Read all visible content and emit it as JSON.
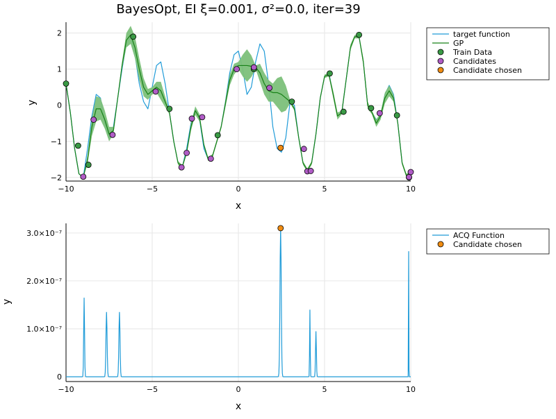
{
  "chart_data": [
    {
      "type": "line",
      "title": "BayesOpt, EI ξ=0.001, σ²=0.0, iter=39",
      "xlabel": "x",
      "ylabel": "y",
      "xlim": [
        -10,
        10
      ],
      "ylim": [
        -2.1,
        2.3
      ],
      "xticks": [
        -10,
        -5,
        0,
        5,
        10
      ],
      "xtick_labels": [
        "−10",
        "−5",
        "0",
        "5",
        "10"
      ],
      "yticks": [
        -2,
        -1,
        0,
        1,
        2
      ],
      "ytick_labels": [
        "−2",
        "−1",
        "0",
        "1",
        "2"
      ],
      "grid": true,
      "legend_position": "outside-top-right",
      "series": [
        {
          "name": "target function",
          "kind": "line",
          "color": "#1f9bd8",
          "x": [
            -10,
            -9.75,
            -9.5,
            -9.25,
            -9,
            -8.75,
            -8.5,
            -8.25,
            -8,
            -7.75,
            -7.5,
            -7.25,
            -7,
            -6.75,
            -6.5,
            -6.25,
            -6,
            -5.75,
            -5.5,
            -5.25,
            -5,
            -4.75,
            -4.5,
            -4.25,
            -4,
            -3.75,
            -3.5,
            -3.25,
            -3,
            -2.75,
            -2.5,
            -2.25,
            -2,
            -1.75,
            -1.5,
            -1.25,
            -1,
            -0.75,
            -0.5,
            -0.25,
            0,
            0.25,
            0.5,
            0.75,
            1,
            1.25,
            1.5,
            1.75,
            2,
            2.25,
            2.5,
            2.75,
            3,
            3.25,
            3.5,
            3.75,
            4,
            4.25,
            4.5,
            4.75,
            5,
            5.25,
            5.5,
            5.75,
            6,
            6.25,
            6.5,
            6.75,
            7,
            7.25,
            7.5,
            7.75,
            8,
            8.25,
            8.5,
            8.75,
            9,
            9.25,
            9.5,
            9.75,
            10
          ],
          "y": [
            0.6,
            -0.2,
            -1.2,
            -1.9,
            -2.0,
            -1.2,
            -0.3,
            0.3,
            0.2,
            -0.5,
            -0.9,
            -0.6,
            0.2,
            1.0,
            1.7,
            1.9,
            1.4,
            0.6,
            0.1,
            -0.1,
            0.5,
            1.1,
            1.2,
            0.6,
            -0.2,
            -1.0,
            -1.6,
            -1.7,
            -1.2,
            -0.5,
            -0.1,
            -0.4,
            -1.2,
            -1.5,
            -1.4,
            -1.0,
            -0.6,
            0.1,
            0.9,
            1.4,
            1.5,
            1.0,
            0.3,
            0.5,
            1.2,
            1.7,
            1.5,
            0.6,
            -0.6,
            -1.2,
            -1.3,
            -0.9,
            0.1,
            0.0,
            -0.9,
            -1.6,
            -1.8,
            -1.6,
            -0.8,
            0.2,
            0.8,
            0.9,
            0.3,
            -0.3,
            -0.2,
            0.7,
            1.6,
            1.9,
            1.9,
            1.2,
            0.0,
            -0.2,
            -0.4,
            -0.3,
            0.3,
            0.55,
            0.3,
            -0.5,
            -1.6,
            -1.95,
            -1.85
          ]
        },
        {
          "name": "GP",
          "kind": "line_with_band",
          "color": "#178117",
          "band_color": "#7cc07a",
          "x": [
            -10,
            -9.75,
            -9.5,
            -9.25,
            -9,
            -8.75,
            -8.5,
            -8.25,
            -8,
            -7.75,
            -7.5,
            -7.25,
            -7,
            -6.75,
            -6.5,
            -6.25,
            -6,
            -5.75,
            -5.5,
            -5.25,
            -5,
            -4.75,
            -4.5,
            -4.25,
            -4,
            -3.75,
            -3.5,
            -3.25,
            -3,
            -2.75,
            -2.5,
            -2.25,
            -2,
            -1.75,
            -1.5,
            -1.25,
            -1,
            -0.75,
            -0.5,
            -0.25,
            0,
            0.25,
            0.5,
            0.75,
            1,
            1.25,
            1.5,
            1.75,
            2,
            2.25,
            2.5,
            2.75,
            3,
            3.25,
            3.5,
            3.75,
            4,
            4.25,
            4.5,
            4.75,
            5,
            5.25,
            5.5,
            5.75,
            6,
            6.25,
            6.5,
            6.75,
            7,
            7.25,
            7.5,
            7.75,
            8,
            8.25,
            8.5,
            8.75,
            9,
            9.25,
            9.5,
            9.75,
            10
          ],
          "y": [
            0.6,
            -0.2,
            -1.2,
            -1.9,
            -2.0,
            -1.5,
            -0.6,
            -0.1,
            -0.1,
            -0.4,
            -0.8,
            -0.7,
            0.2,
            1.1,
            1.8,
            1.95,
            1.6,
            1.0,
            0.5,
            0.3,
            0.4,
            0.5,
            0.4,
            0.1,
            -0.2,
            -1.0,
            -1.6,
            -1.7,
            -1.3,
            -0.6,
            -0.15,
            -0.35,
            -1.1,
            -1.5,
            -1.4,
            -1.0,
            -0.6,
            0.05,
            0.7,
            1.0,
            1.1,
            1.1,
            1.1,
            1.08,
            1.05,
            0.9,
            0.6,
            0.4,
            0.35,
            0.35,
            0.3,
            0.2,
            0.1,
            -0.1,
            -0.9,
            -1.6,
            -1.8,
            -1.6,
            -0.8,
            0.2,
            0.8,
            0.85,
            0.3,
            -0.3,
            -0.2,
            0.7,
            1.6,
            1.9,
            1.9,
            1.2,
            0.0,
            -0.2,
            -0.5,
            -0.3,
            0.2,
            0.4,
            0.2,
            -0.5,
            -1.6,
            -1.95,
            -1.85
          ],
          "band_halfwidth": [
            0,
            0,
            0,
            0,
            0,
            0.12,
            0.25,
            0.35,
            0.3,
            0.25,
            0.2,
            0.1,
            0.05,
            0.1,
            0.2,
            0.25,
            0.3,
            0.3,
            0.25,
            0.15,
            0.1,
            0.15,
            0.25,
            0.15,
            0.05,
            0.05,
            0.05,
            0.05,
            0.05,
            0.1,
            0.12,
            0.1,
            0.05,
            0.05,
            0.05,
            0.05,
            0.05,
            0.1,
            0.15,
            0.15,
            0.1,
            0.3,
            0.45,
            0.3,
            0.05,
            0.25,
            0.3,
            0.3,
            0.25,
            0.4,
            0.5,
            0.35,
            0.05,
            0.05,
            0.05,
            0.05,
            0.05,
            0.05,
            0.05,
            0.05,
            0.05,
            0.05,
            0.1,
            0.1,
            0.05,
            0.05,
            0.08,
            0.05,
            0.05,
            0.1,
            0.1,
            0.05,
            0.1,
            0.1,
            0.15,
            0.15,
            0.1,
            0.05,
            0.05,
            0.05,
            0.05
          ]
        },
        {
          "name": "Train Data",
          "kind": "scatter",
          "color": "#3a9a45",
          "x": [
            -10,
            -9.3,
            -8.7,
            -6.1,
            -4,
            -1.2,
            0.9,
            3.1,
            5.3,
            6.1,
            7,
            7.7,
            9.2,
            9.9
          ],
          "y": [
            0.6,
            -1.12,
            -1.65,
            1.9,
            -0.1,
            -0.83,
            1.0,
            0.1,
            0.88,
            -0.18,
            1.95,
            -0.08,
            -0.28,
            -2.0
          ]
        },
        {
          "name": "Candidates",
          "kind": "scatter",
          "color": "#b05cc6",
          "x": [
            -9,
            -8.4,
            -7.3,
            -4.8,
            -3.3,
            -3,
            -2.7,
            -2.1,
            -1.6,
            -0.1,
            0.9,
            1.8,
            3.8,
            4.0,
            4.2,
            8.2,
            9.9,
            10
          ],
          "y": [
            -1.98,
            -0.4,
            -0.82,
            0.38,
            -1.72,
            -1.32,
            -0.37,
            -0.33,
            -1.48,
            1.0,
            1.05,
            0.48,
            -1.21,
            -1.83,
            -1.82,
            -0.22,
            -1.99,
            -1.85
          ]
        },
        {
          "name": "Candidate chosen",
          "kind": "scatter",
          "color": "#f08c12",
          "x": [
            2.45
          ],
          "y": [
            -1.18
          ]
        }
      ]
    },
    {
      "type": "line",
      "title": "",
      "xlabel": "x",
      "ylabel": "y",
      "xlim": [
        -10,
        10
      ],
      "ylim": [
        -1e-08,
        3.2e-07
      ],
      "xticks": [
        -10,
        -5,
        0,
        5,
        10
      ],
      "xtick_labels": [
        "−10",
        "−5",
        "0",
        "5",
        "10"
      ],
      "yticks": [
        0,
        1e-07,
        2e-07,
        3e-07
      ],
      "ytick_labels": [
        "0",
        "1.0×10⁻⁷",
        "2.0×10⁻⁷",
        "3.0×10⁻⁷"
      ],
      "grid": true,
      "legend_position": "outside-top-right",
      "series": [
        {
          "name": "ACQ Function",
          "kind": "peaks",
          "color": "#1f9bd8",
          "baseline": 0,
          "peaks": [
            {
              "x": -8.95,
              "y": 1.65e-07,
              "width": 0.06
            },
            {
              "x": -7.65,
              "y": 1.35e-07,
              "width": 0.08
            },
            {
              "x": -6.9,
              "y": 1.35e-07,
              "width": 0.08
            },
            {
              "x": 2.45,
              "y": 3.1e-07,
              "width": 0.09
            },
            {
              "x": 4.15,
              "y": 1.4e-07,
              "width": 0.04
            },
            {
              "x": 4.5,
              "y": 9.5e-08,
              "width": 0.06
            },
            {
              "x": 9.88,
              "y": 2.62e-07,
              "width": 0.02
            }
          ]
        },
        {
          "name": "Candidate chosen",
          "kind": "scatter",
          "color": "#f08c12",
          "x": [
            2.45
          ],
          "y": [
            3.1e-07
          ]
        }
      ]
    }
  ]
}
